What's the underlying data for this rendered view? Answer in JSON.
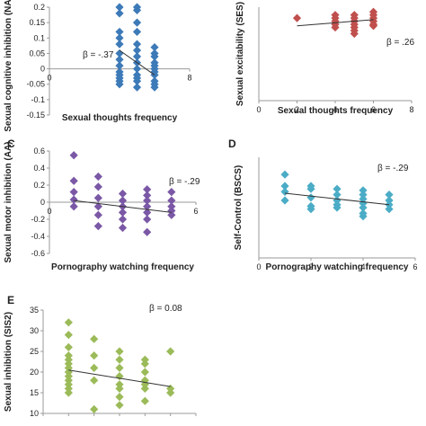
{
  "chart_data": [
    {
      "type": "scatter",
      "panel": "A",
      "color": "#3d7ab8",
      "xlabel": "Sexual thoughts frequency",
      "ylabel": "Sexual cognitive inhibition (NAP)",
      "annotation": "β = -.37",
      "xlim": [
        0,
        8
      ],
      "ylim": [
        -0.15,
        0.2
      ],
      "xticks": [
        0,
        4,
        8
      ],
      "xtick_labels": [
        "0",
        "4",
        "8"
      ],
      "yticks": [
        -0.15,
        -0.1,
        -0.05,
        0,
        0.05,
        0.1,
        0.15,
        0.2
      ],
      "ytick_labels": [
        "-0.15",
        "-0.1",
        "-0.05",
        "0",
        "0.05",
        "0.1",
        "0.15",
        "0.2"
      ],
      "trend": {
        "x": [
          4,
          6
        ],
        "y": [
          0.06,
          -0.02
        ]
      },
      "x": [
        4,
        4,
        4,
        4,
        4,
        4,
        4,
        4,
        4,
        4,
        4,
        4,
        4,
        5,
        5,
        5,
        5,
        5,
        5,
        5,
        5,
        5,
        5,
        5,
        5,
        5,
        6,
        6,
        6,
        6,
        6,
        6,
        6,
        6,
        6,
        6,
        6
      ],
      "y": [
        0.2,
        0.18,
        0.12,
        0.1,
        0.08,
        0.05,
        0.03,
        0.01,
        -0.01,
        -0.02,
        -0.03,
        -0.04,
        -0.05,
        0.2,
        0.19,
        0.15,
        0.12,
        0.08,
        0.06,
        0.04,
        0.02,
        0,
        -0.02,
        -0.03,
        -0.04,
        -0.06,
        0.07,
        0.05,
        0.04,
        0.02,
        0.01,
        0,
        -0.01,
        -0.02,
        -0.04,
        -0.05,
        -0.06
      ]
    },
    {
      "type": "scatter",
      "panel": "B",
      "color": "#c0504d",
      "xlabel": "Sexual thoughts frequency",
      "ylabel": "Sexual excitability (SES)",
      "annotation": "β = .26",
      "xlim": [
        0,
        8
      ],
      "xticks": [
        0,
        2,
        4,
        6,
        8
      ],
      "xtick_labels": [
        "0",
        "2",
        "4",
        "6",
        "8"
      ],
      "yticks": [],
      "ytick_labels": [],
      "ylim": [
        0,
        60
      ],
      "trend": {
        "x": [
          2,
          6
        ],
        "y": [
          48,
          52
        ]
      },
      "x": [
        2,
        4,
        4,
        4,
        4,
        4,
        5,
        5,
        5,
        5,
        5,
        5,
        5,
        6,
        6,
        6,
        6,
        6,
        6
      ],
      "y": [
        53,
        55,
        53,
        51,
        49,
        47,
        55,
        53,
        51,
        49,
        47,
        45,
        43,
        57,
        55,
        53,
        51,
        49,
        48
      ]
    },
    {
      "type": "scatter",
      "panel": "C",
      "color": "#7b58a6",
      "xlabel": "Pornography watching frequency",
      "ylabel": "Sexual motor inhibition (AA)",
      "annotation": "β = -.29",
      "xlim": [
        0,
        6
      ],
      "ylim": [
        -0.6,
        0.6
      ],
      "xticks": [
        0,
        6
      ],
      "xtick_labels": [
        "0",
        "6"
      ],
      "yticks": [
        -0.6,
        -0.4,
        -0.2,
        0,
        0.2,
        0.4,
        0.6
      ],
      "ytick_labels": [
        "-0.6",
        "-0.4",
        "-0.2",
        "0",
        "0.2",
        "0.4",
        "0.6"
      ],
      "trend": {
        "x": [
          1,
          5
        ],
        "y": [
          0.02,
          -0.12
        ]
      },
      "x": [
        1,
        1,
        1,
        1,
        1,
        2,
        2,
        2,
        2,
        2,
        2,
        3,
        3,
        3,
        3,
        3,
        3,
        4,
        4,
        4,
        4,
        4,
        4,
        4,
        5,
        5,
        5,
        5,
        5
      ],
      "y": [
        0.55,
        0.25,
        0.12,
        0.03,
        -0.05,
        0.3,
        0.18,
        0.05,
        -0.05,
        -0.15,
        -0.28,
        0.1,
        0.02,
        -0.05,
        -0.12,
        -0.2,
        -0.3,
        0.15,
        0.08,
        0.02,
        -0.05,
        -0.12,
        -0.2,
        -0.35,
        0.12,
        0.02,
        -0.05,
        -0.1,
        -0.15
      ]
    },
    {
      "type": "scatter",
      "panel": "D",
      "color": "#4bacc6",
      "xlabel": "Pornography watching frequency",
      "ylabel": "Self-Control (BSCS)",
      "annotation": "β = -.29",
      "xlim": [
        0,
        6
      ],
      "xticks": [
        0,
        2,
        4,
        6
      ],
      "xtick_labels": [
        "0",
        "2",
        "4",
        "6"
      ],
      "yticks": [],
      "ytick_labels": [],
      "ylim": [
        0,
        70
      ],
      "trend": {
        "x": [
          1,
          5
        ],
        "y": [
          45,
          37
        ]
      },
      "x": [
        1,
        1,
        1,
        1,
        2,
        2,
        2,
        2,
        2,
        3,
        3,
        3,
        3,
        3,
        4,
        4,
        4,
        4,
        4,
        4,
        4,
        5,
        5,
        5,
        5
      ],
      "y": [
        58,
        50,
        46,
        40,
        50,
        48,
        42,
        36,
        34,
        48,
        44,
        40,
        37,
        35,
        47,
        44,
        41,
        38,
        35,
        31,
        29,
        44,
        40,
        37,
        34
      ]
    },
    {
      "type": "scatter",
      "panel": "E",
      "color": "#9bbb59",
      "xlabel": "",
      "ylabel": "Sexual inhibition (SIS2)",
      "annotation": "β = 0.08",
      "xlim": [
        0,
        6
      ],
      "ylim": [
        10,
        35
      ],
      "xticks": [
        0,
        1,
        2,
        3,
        4,
        5,
        6
      ],
      "xtick_labels": [],
      "yticks": [
        10,
        15,
        20,
        25,
        30,
        35
      ],
      "ytick_labels": [
        "10",
        "15",
        "20",
        "25",
        "30",
        "35"
      ],
      "trend": {
        "x": [
          1,
          5
        ],
        "y": [
          20.5,
          16.5
        ]
      },
      "x": [
        1,
        1,
        1,
        1,
        1,
        1,
        1,
        1,
        1,
        1,
        1,
        1,
        1,
        2,
        2,
        2,
        2,
        2,
        3,
        3,
        3,
        3,
        3,
        3,
        3,
        3,
        4,
        4,
        4,
        4,
        4,
        4,
        4,
        5,
        5,
        5
      ],
      "y": [
        32,
        29,
        26,
        24,
        23,
        22,
        21,
        20,
        19,
        18,
        17,
        16,
        15,
        28,
        24,
        21,
        18,
        11,
        25,
        23,
        21,
        19,
        17,
        16,
        14,
        12,
        23,
        22,
        20,
        18,
        17,
        16,
        13,
        25,
        16,
        15
      ]
    }
  ]
}
